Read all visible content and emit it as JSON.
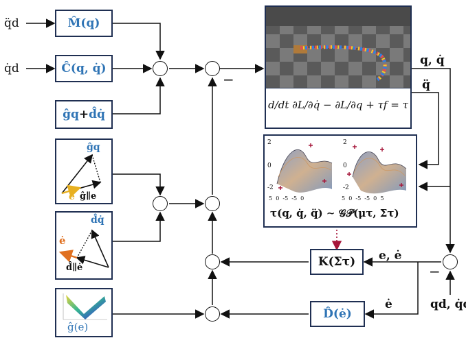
{
  "inputs": {
    "qdd_d": "q̈d",
    "qd_d": "q̇d",
    "q_out": "q, q̇",
    "qdd_out": "q̈",
    "error": "e, ė",
    "edot": "ė",
    "q_ref": "qd, q̇d"
  },
  "blocks": {
    "mass": "M̂(q)",
    "coriolis": "Ĉ(q, q̇)",
    "grav_prefix": "ĝq",
    "grav_plus": "+",
    "grav_suffix": "d̂q̇",
    "gain": "K(Στ)",
    "damping": "D̂(ė)"
  },
  "robot": {
    "equation": "d/dt ∂L/∂q̇ − ∂L/∂q + τf = τ"
  },
  "gp": {
    "caption": "τ(q, q̇, q̈) ∼ 𝒢𝒫(μτ, Στ)",
    "y_ticks": [
      "2",
      "0",
      "-2"
    ],
    "x_ticks_left": [
      "5",
      "0",
      "-5",
      "-5",
      "0"
    ],
    "x_ticks_right": [
      "5",
      "0",
      "-5",
      "-5",
      "0",
      "5"
    ]
  },
  "vectors_g": {
    "g_label": "ĝq",
    "e_label": "e",
    "proj_label": "ĝ∥e"
  },
  "vectors_d": {
    "d_label": "d̂q̇",
    "edot_label": "ė",
    "proj_label": "d̂∥ė"
  },
  "potential": {
    "label": "ĝ(e)"
  },
  "signs": {
    "minus_top": "−",
    "minus_right": "−"
  },
  "colors": {
    "box_border": "#1f2f52",
    "accent_blue": "#2f74b5",
    "accent_red": "#a6163a",
    "accent_orange": "#e07020",
    "accent_yellow": "#e8b020"
  }
}
